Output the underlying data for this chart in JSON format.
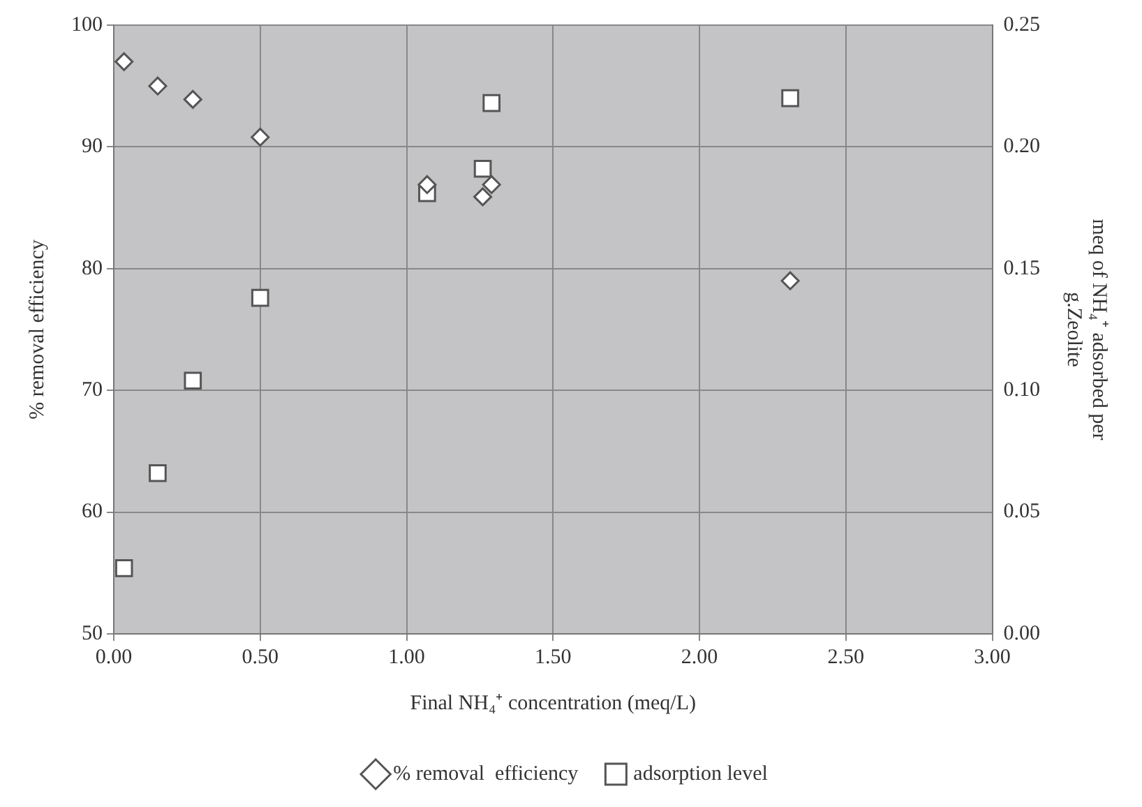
{
  "chart_data": {
    "type": "scatter",
    "xlabel": "Final NH₄⁺ concentration (meq/L)",
    "ylabel": "% removal efficiency",
    "y2label": "meq of NH₄⁺ adsorbed per g.Zeolite",
    "x": [
      0.035,
      0.15,
      0.27,
      0.5,
      1.07,
      1.26,
      1.29,
      2.31
    ],
    "series": [
      {
        "name": "% removal  efficiency",
        "color": "#555555",
        "marker": "diamond",
        "values": [
          97,
          95,
          93.9,
          90.8,
          86.9,
          85.9,
          86.9,
          79
        ]
      },
      {
        "name": "adsorption level",
        "color": "#555555",
        "marker": "square",
        "axis": "y2",
        "x": [
          0.035,
          0.15,
          0.27,
          0.5,
          1.07,
          1.26,
          1.29,
          2.31
        ],
        "values": [
          0.027,
          0.066,
          0.104,
          0.138,
          0.181,
          0.191,
          0.218,
          0.22
        ]
      }
    ],
    "xlim": [
      0,
      3
    ],
    "xticks": [
      {
        "value": 0,
        "label": "0.00"
      },
      {
        "value": 0.5,
        "label": "0.50"
      },
      {
        "value": 1,
        "label": "1.00"
      },
      {
        "value": 1.5,
        "label": "1.50"
      },
      {
        "value": 2,
        "label": "2.00"
      },
      {
        "value": 2.5,
        "label": "2.50"
      },
      {
        "value": 3,
        "label": "3.00"
      }
    ],
    "ylim": [
      50,
      100
    ],
    "yticks": [
      50,
      60,
      70,
      80,
      90,
      100
    ],
    "y2lim": [
      0,
      0.25
    ],
    "y2ticks": [
      {
        "value": 0,
        "label": "0.00"
      },
      {
        "value": 0.05,
        "label": "0.05"
      },
      {
        "value": 0.1,
        "label": "0.10"
      },
      {
        "value": 0.15,
        "label": "0.15"
      },
      {
        "value": 0.2,
        "label": "0.20"
      },
      {
        "value": 0.25,
        "label": "0.25"
      }
    ],
    "grid": true,
    "legend": "bottom"
  }
}
